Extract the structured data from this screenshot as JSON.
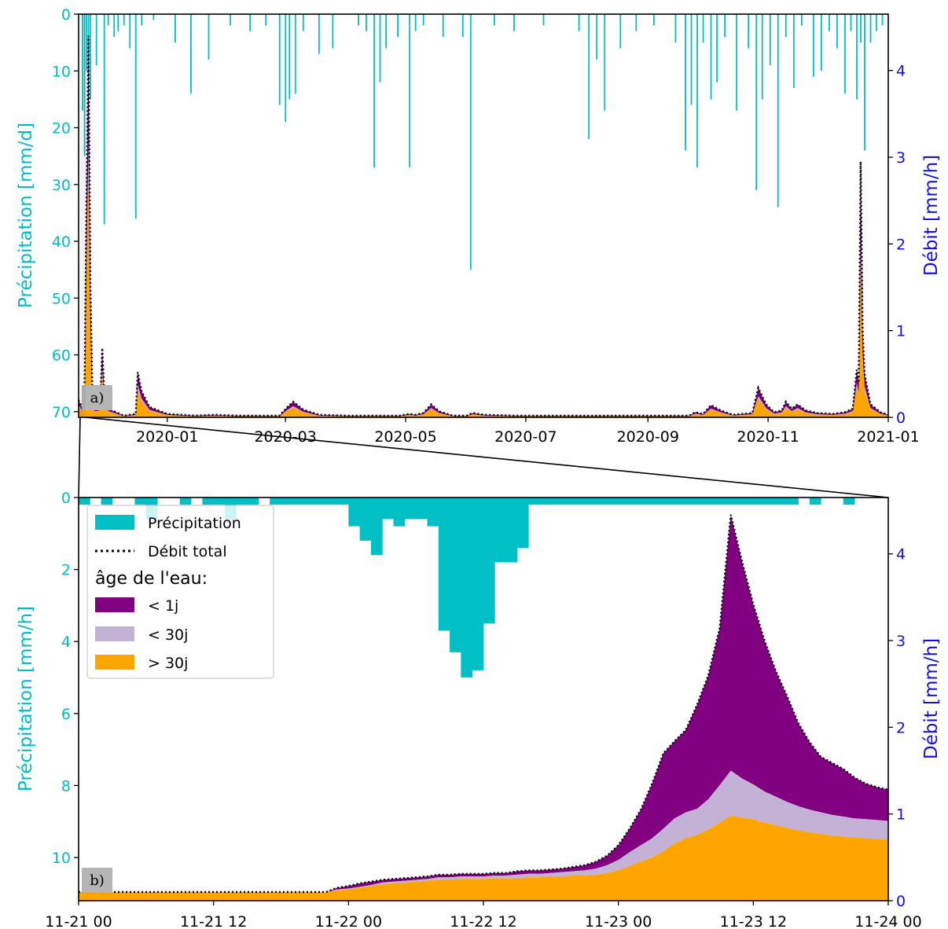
{
  "colors": {
    "precip": "#00C0C6",
    "lt1": "#800080",
    "lt30": "#C3B1D6",
    "gt30": "#FFA500",
    "flow_axis": "#1010E0",
    "precip_axis": "#00BCC4",
    "label_box": "#B5B5B5"
  },
  "chart_data": [
    {
      "panel": "a)",
      "type": "area",
      "ylabel_left": "Précipitation [mm/d]",
      "ylabel_right": "Débit [mm/h]",
      "ylim_left": [
        71,
        0
      ],
      "ylim_right": [
        0,
        4.65
      ],
      "yticks_left": [
        0,
        10,
        20,
        30,
        40,
        50,
        60,
        70
      ],
      "yticks_right": [
        0,
        1,
        2,
        3,
        4
      ],
      "x_start": "2019-11-17",
      "x_end": "2021-01-01",
      "xticks": [
        "2020-01",
        "2020-03",
        "2020-05",
        "2020-07",
        "2020-09",
        "2020-11",
        "2021-01"
      ],
      "xtick_dates": [
        "2020-01-01",
        "2020-03-01",
        "2020-05-01",
        "2020-07-01",
        "2020-09-01",
        "2020-11-01",
        "2021-01-01"
      ],
      "precipitation_mm_per_day": [
        [
          "2019-11-19",
          17
        ],
        [
          "2019-11-20",
          25
        ],
        [
          "2019-11-21",
          10
        ],
        [
          "2019-11-22",
          24
        ],
        [
          "2019-11-23",
          15
        ],
        [
          "2019-11-26",
          9
        ],
        [
          "2019-11-30",
          37
        ],
        [
          "2019-12-02",
          2
        ],
        [
          "2019-12-05",
          4
        ],
        [
          "2019-12-07",
          3
        ],
        [
          "2019-12-10",
          2
        ],
        [
          "2019-12-13",
          6
        ],
        [
          "2019-12-16",
          36
        ],
        [
          "2019-12-19",
          2
        ],
        [
          "2019-12-25",
          1
        ],
        [
          "2020-01-05",
          5
        ],
        [
          "2020-01-13",
          14
        ],
        [
          "2020-01-22",
          8
        ],
        [
          "2020-02-02",
          2
        ],
        [
          "2020-02-12",
          3
        ],
        [
          "2020-02-20",
          2
        ],
        [
          "2020-02-27",
          16
        ],
        [
          "2020-03-01",
          19
        ],
        [
          "2020-03-03",
          15
        ],
        [
          "2020-03-06",
          14
        ],
        [
          "2020-03-10",
          3
        ],
        [
          "2020-03-18",
          7
        ],
        [
          "2020-03-25",
          6
        ],
        [
          "2020-04-07",
          2
        ],
        [
          "2020-04-11",
          3
        ],
        [
          "2020-04-15",
          27
        ],
        [
          "2020-04-18",
          12
        ],
        [
          "2020-04-21",
          6
        ],
        [
          "2020-04-27",
          4
        ],
        [
          "2020-05-03",
          27
        ],
        [
          "2020-05-06",
          3
        ],
        [
          "2020-05-10",
          2
        ],
        [
          "2020-05-20",
          4
        ],
        [
          "2020-05-30",
          4
        ],
        [
          "2020-06-03",
          45
        ],
        [
          "2020-06-15",
          2
        ],
        [
          "2020-06-25",
          3
        ],
        [
          "2020-07-10",
          2
        ],
        [
          "2020-07-28",
          3
        ],
        [
          "2020-08-02",
          22
        ],
        [
          "2020-08-06",
          8
        ],
        [
          "2020-08-10",
          17
        ],
        [
          "2020-08-18",
          6
        ],
        [
          "2020-08-26",
          3
        ],
        [
          "2020-09-04",
          2
        ],
        [
          "2020-09-15",
          5
        ],
        [
          "2020-09-20",
          24
        ],
        [
          "2020-09-23",
          16
        ],
        [
          "2020-09-26",
          27
        ],
        [
          "2020-09-29",
          5
        ],
        [
          "2020-10-03",
          15
        ],
        [
          "2020-10-06",
          12
        ],
        [
          "2020-10-10",
          4
        ],
        [
          "2020-10-16",
          17
        ],
        [
          "2020-10-22",
          6
        ],
        [
          "2020-10-26",
          31
        ],
        [
          "2020-10-29",
          15
        ],
        [
          "2020-11-02",
          9
        ],
        [
          "2020-11-06",
          34
        ],
        [
          "2020-11-10",
          4
        ],
        [
          "2020-11-14",
          13
        ],
        [
          "2020-11-18",
          2
        ],
        [
          "2020-11-24",
          11
        ],
        [
          "2020-11-28",
          10
        ],
        [
          "2020-12-02",
          3
        ],
        [
          "2020-12-06",
          6
        ],
        [
          "2020-12-10",
          14
        ],
        [
          "2020-12-13",
          3
        ],
        [
          "2020-12-16",
          15
        ],
        [
          "2020-12-18",
          5
        ],
        [
          "2020-12-20",
          24
        ],
        [
          "2020-12-23",
          5
        ],
        [
          "2020-12-26",
          3
        ],
        [
          "2020-12-29",
          2
        ]
      ],
      "flow_total_mm_per_h": [
        [
          "2019-11-17",
          0.2
        ],
        [
          "2019-11-19",
          0.1
        ],
        [
          "2019-11-20",
          0.3
        ],
        [
          "2019-11-21",
          2.5
        ],
        [
          "2019-11-22",
          4.4
        ],
        [
          "2019-11-23",
          1.5
        ],
        [
          "2019-11-24",
          0.3
        ],
        [
          "2019-11-25",
          0.1
        ],
        [
          "2019-11-27",
          0.1
        ],
        [
          "2019-11-28",
          0.2
        ],
        [
          "2019-11-29",
          0.8
        ],
        [
          "2019-11-30",
          0.3
        ],
        [
          "2019-12-02",
          0.1
        ],
        [
          "2019-12-10",
          0.02
        ],
        [
          "2019-12-16",
          0.04
        ],
        [
          "2019-12-17",
          0.52
        ],
        [
          "2019-12-19",
          0.3
        ],
        [
          "2019-12-23",
          0.12
        ],
        [
          "2020-01-01",
          0.04
        ],
        [
          "2020-01-15",
          0.02
        ],
        [
          "2020-01-25",
          0.03
        ],
        [
          "2020-02-05",
          0.02
        ],
        [
          "2020-02-27",
          0.02
        ],
        [
          "2020-03-02",
          0.12
        ],
        [
          "2020-03-05",
          0.18
        ],
        [
          "2020-03-10",
          0.09
        ],
        [
          "2020-03-18",
          0.03
        ],
        [
          "2020-04-01",
          0.02
        ],
        [
          "2020-04-28",
          0.02
        ],
        [
          "2020-05-03",
          0.04
        ],
        [
          "2020-05-06",
          0.03
        ],
        [
          "2020-05-10",
          0.05
        ],
        [
          "2020-05-14",
          0.15
        ],
        [
          "2020-05-18",
          0.07
        ],
        [
          "2020-05-25",
          0.02
        ],
        [
          "2020-06-01",
          0.02
        ],
        [
          "2020-06-04",
          0.05
        ],
        [
          "2020-06-10",
          0.03
        ],
        [
          "2020-06-25",
          0.02
        ],
        [
          "2020-09-22",
          0.02
        ],
        [
          "2020-09-25",
          0.06
        ],
        [
          "2020-09-29",
          0.04
        ],
        [
          "2020-10-03",
          0.14
        ],
        [
          "2020-10-08",
          0.08
        ],
        [
          "2020-10-14",
          0.03
        ],
        [
          "2020-10-24",
          0.05
        ],
        [
          "2020-10-27",
          0.34
        ],
        [
          "2020-10-31",
          0.15
        ],
        [
          "2020-11-04",
          0.06
        ],
        [
          "2020-11-08",
          0.08
        ],
        [
          "2020-11-10",
          0.18
        ],
        [
          "2020-11-13",
          0.1
        ],
        [
          "2020-11-16",
          0.15
        ],
        [
          "2020-11-20",
          0.08
        ],
        [
          "2020-11-26",
          0.05
        ],
        [
          "2020-12-04",
          0.04
        ],
        [
          "2020-12-10",
          0.06
        ],
        [
          "2020-12-14",
          0.1
        ],
        [
          "2020-12-16",
          0.55
        ],
        [
          "2020-12-17",
          0.4
        ],
        [
          "2020-12-18",
          2.95
        ],
        [
          "2020-12-19",
          1.0
        ],
        [
          "2020-12-20",
          0.5
        ],
        [
          "2020-12-23",
          0.15
        ],
        [
          "2020-12-28",
          0.06
        ],
        [
          "2021-01-01",
          0.03
        ]
      ]
    },
    {
      "panel": "b)",
      "type": "area",
      "ylabel_left": "Précipitation [mm/h]",
      "ylabel_right": "Débit [mm/h]",
      "ylim_left": [
        11.2,
        0
      ],
      "ylim_right": [
        0,
        4.65
      ],
      "yticks_left": [
        0,
        2,
        4,
        6,
        8,
        10
      ],
      "yticks_right": [
        0,
        1,
        2,
        3,
        4
      ],
      "x_range_hours": [
        0,
        72
      ],
      "xticks": [
        "11-21 00",
        "11-21 12",
        "11-22 00",
        "11-22 12",
        "11-23 00",
        "11-23 12",
        "11-24 00"
      ],
      "xtick_hours": [
        0,
        12,
        24,
        36,
        48,
        60,
        72
      ],
      "precipitation_hourly_mm_per_h": [
        0.2,
        0,
        0.2,
        0,
        0,
        0.2,
        0.6,
        0,
        0,
        0.2,
        0,
        0.2,
        0.2,
        0.6,
        0.2,
        0.2,
        0,
        0.2,
        0.2,
        0.2,
        0.2,
        0.2,
        0.2,
        0.2,
        0.8,
        1.2,
        1.6,
        0.6,
        0.8,
        0.6,
        0.6,
        0.8,
        3.7,
        4.3,
        5.0,
        4.8,
        3.5,
        1.8,
        1.8,
        1.4,
        0.2,
        0.2,
        0.2,
        0.2,
        0.2,
        0.2,
        0.2,
        0.2,
        0.2,
        0.2,
        0.2,
        0.2,
        0.2,
        0.2,
        0.2,
        0.2,
        0.2,
        0.2,
        0.2,
        0.2,
        0.2,
        0.2,
        0.2,
        0.2,
        0,
        0.2,
        0,
        0,
        0.2,
        0,
        0,
        0
      ],
      "series": [
        {
          "name": "> 30j",
          "values": [
            0.1,
            0.1,
            0.1,
            0.1,
            0.1,
            0.1,
            0.1,
            0.1,
            0.1,
            0.1,
            0.1,
            0.1,
            0.1,
            0.1,
            0.1,
            0.1,
            0.1,
            0.1,
            0.1,
            0.1,
            0.1,
            0.1,
            0.1,
            0.12,
            0.13,
            0.15,
            0.17,
            0.19,
            0.2,
            0.21,
            0.22,
            0.23,
            0.24,
            0.24,
            0.25,
            0.25,
            0.25,
            0.26,
            0.26,
            0.26,
            0.27,
            0.27,
            0.28,
            0.28,
            0.29,
            0.29,
            0.3,
            0.32,
            0.35,
            0.4,
            0.45,
            0.5,
            0.57,
            0.66,
            0.72,
            0.76,
            0.82,
            0.9,
            0.98,
            0.96,
            0.94,
            0.9,
            0.87,
            0.84,
            0.81,
            0.79,
            0.77,
            0.75,
            0.74,
            0.73,
            0.72,
            0.71,
            0.7
          ]
        },
        {
          "name": "< 30j",
          "values": [
            0,
            0,
            0,
            0,
            0,
            0,
            0,
            0,
            0,
            0,
            0,
            0,
            0,
            0,
            0,
            0,
            0,
            0,
            0,
            0,
            0,
            0,
            0,
            0.01,
            0.01,
            0.01,
            0.01,
            0.02,
            0.02,
            0.02,
            0.02,
            0.02,
            0.03,
            0.03,
            0.03,
            0.03,
            0.03,
            0.03,
            0.03,
            0.04,
            0.04,
            0.04,
            0.04,
            0.05,
            0.05,
            0.06,
            0.07,
            0.09,
            0.12,
            0.16,
            0.19,
            0.22,
            0.26,
            0.29,
            0.3,
            0.3,
            0.35,
            0.43,
            0.52,
            0.45,
            0.4,
            0.36,
            0.33,
            0.3,
            0.28,
            0.26,
            0.25,
            0.24,
            0.23,
            0.22,
            0.22,
            0.22,
            0.22
          ]
        },
        {
          "name": "< 1j",
          "values": [
            0,
            0,
            0,
            0,
            0,
            0,
            0,
            0,
            0,
            0,
            0,
            0,
            0,
            0,
            0,
            0,
            0,
            0,
            0,
            0,
            0,
            0,
            0,
            0.02,
            0.03,
            0.04,
            0.04,
            0.03,
            0.03,
            0.03,
            0.03,
            0.03,
            0.03,
            0.03,
            0.03,
            0.03,
            0.03,
            0.03,
            0.03,
            0.04,
            0.04,
            0.04,
            0.04,
            0.04,
            0.05,
            0.06,
            0.08,
            0.11,
            0.17,
            0.27,
            0.41,
            0.63,
            0.87,
            0.89,
            0.95,
            1.2,
            1.43,
            1.81,
            2.95,
            2.5,
            2.08,
            1.74,
            1.45,
            1.22,
            0.96,
            0.78,
            0.64,
            0.6,
            0.55,
            0.47,
            0.41,
            0.38,
            0.36
          ]
        }
      ],
      "flow_total_label": "Débit total"
    }
  ],
  "legend": {
    "items": [
      {
        "label": "Précipitation"
      },
      {
        "label": "Débit total"
      }
    ],
    "title": "âge de l'eau:",
    "age_items": [
      {
        "label": "< 1j"
      },
      {
        "label": "< 30j"
      },
      {
        "label": "> 30j"
      }
    ]
  }
}
